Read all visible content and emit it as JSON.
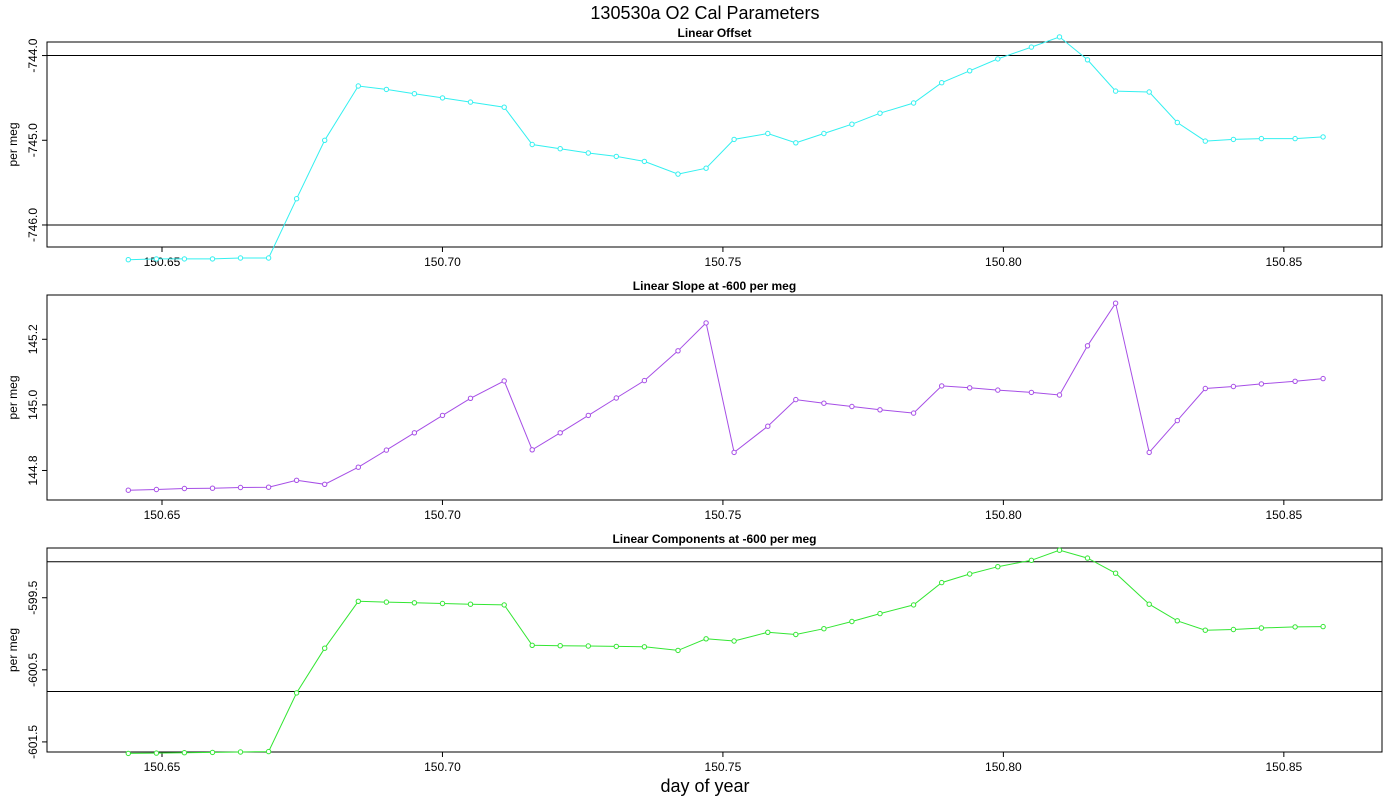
{
  "title": "130530a   O2 Cal Parameters",
  "xlabel": "day of year",
  "chart_data": [
    {
      "type": "line",
      "title": "Linear Offset",
      "ylabel": "per meg",
      "color": "#33f0f0",
      "xlim": [
        150.6295,
        150.8675
      ],
      "ylim": [
        -746.26,
        -743.84
      ],
      "xticks": [
        "150.65",
        "150.70",
        "150.75",
        "150.80",
        "150.85"
      ],
      "yticks": [
        "-744.0",
        "-745.0",
        "-746.0"
      ],
      "ref_lines": [
        -744.0,
        -746.0
      ],
      "x": [
        150.644,
        150.649,
        150.654,
        150.659,
        150.664,
        150.669,
        150.674,
        150.679,
        150.685,
        150.69,
        150.695,
        150.7,
        150.705,
        150.711,
        150.716,
        150.721,
        150.726,
        150.731,
        150.736,
        150.742,
        150.747,
        150.752,
        150.758,
        150.763,
        150.768,
        150.773,
        150.778,
        150.784,
        150.789,
        150.794,
        150.799,
        150.805,
        150.81,
        150.815,
        150.82,
        150.826,
        150.831,
        150.836,
        150.841,
        150.846,
        150.852,
        150.857
      ],
      "y": [
        -746.41,
        -746.4,
        -746.4,
        -746.4,
        -746.39,
        -746.39,
        -745.69,
        -745.0,
        -744.36,
        -744.4,
        -744.45,
        -744.5,
        -744.55,
        -744.61,
        -745.05,
        -745.1,
        -745.15,
        -745.19,
        -745.25,
        -745.4,
        -745.33,
        -744.99,
        -744.92,
        -745.03,
        -744.92,
        -744.81,
        -744.68,
        -744.56,
        -744.32,
        -744.18,
        -744.04,
        -743.9,
        -743.78,
        -744.05,
        -744.42,
        -744.43,
        -744.79,
        -745.01,
        -744.99,
        -744.98,
        -744.98,
        -744.96
      ]
    },
    {
      "type": "line",
      "title": "Linear Slope at -600 per meg",
      "ylabel": "per meg",
      "color": "#a64ee6",
      "xlim": [
        150.6295,
        150.8675
      ],
      "ylim": [
        144.71,
        145.335
      ],
      "xticks": [
        "150.65",
        "150.70",
        "150.75",
        "150.80",
        "150.85"
      ],
      "yticks": [
        "144.8",
        "145.0",
        "145.2"
      ],
      "ref_lines": [],
      "x": [
        150.644,
        150.649,
        150.654,
        150.659,
        150.664,
        150.669,
        150.674,
        150.679,
        150.685,
        150.69,
        150.695,
        150.7,
        150.705,
        150.711,
        150.716,
        150.721,
        150.726,
        150.731,
        150.736,
        150.742,
        150.747,
        150.752,
        150.758,
        150.763,
        150.768,
        150.773,
        150.778,
        150.784,
        150.789,
        150.794,
        150.799,
        150.805,
        150.81,
        150.815,
        150.82,
        150.826,
        150.831,
        150.836,
        150.841,
        150.846,
        150.852,
        150.857
      ],
      "y": [
        144.74,
        144.742,
        144.745,
        144.746,
        144.748,
        144.749,
        144.77,
        144.758,
        144.81,
        144.862,
        144.915,
        144.968,
        145.02,
        145.073,
        144.863,
        144.915,
        144.968,
        145.021,
        145.074,
        145.165,
        145.25,
        144.855,
        144.935,
        145.016,
        145.005,
        144.995,
        144.985,
        144.975,
        145.058,
        145.052,
        145.045,
        145.038,
        145.03,
        145.18,
        145.31,
        144.855,
        144.952,
        145.05,
        145.056,
        145.064,
        145.072,
        145.08
      ]
    },
    {
      "type": "line",
      "title": "Linear Components at -600 per meg",
      "ylabel": "per meg",
      "color": "#33e633",
      "xlim": [
        150.6295,
        150.8675
      ],
      "ylim": [
        -601.64,
        -598.81
      ],
      "xticks": [
        "150.65",
        "150.70",
        "150.75",
        "150.80",
        "150.85"
      ],
      "yticks": [
        "-599.5",
        "-600.5",
        "-601.5"
      ],
      "ref_lines": [
        -599.0,
        -600.8
      ],
      "x": [
        150.644,
        150.649,
        150.654,
        150.659,
        150.664,
        150.669,
        150.674,
        150.679,
        150.685,
        150.69,
        150.695,
        150.7,
        150.705,
        150.711,
        150.716,
        150.721,
        150.726,
        150.731,
        150.736,
        150.742,
        150.747,
        150.752,
        150.758,
        150.763,
        150.768,
        150.773,
        150.778,
        150.784,
        150.789,
        150.794,
        150.799,
        150.805,
        150.81,
        150.815,
        150.82,
        150.826,
        150.831,
        150.836,
        150.841,
        150.846,
        150.852,
        150.857
      ],
      "y": [
        -601.66,
        -601.655,
        -601.65,
        -601.645,
        -601.64,
        -601.635,
        -600.82,
        -600.2,
        -599.55,
        -599.56,
        -599.57,
        -599.58,
        -599.59,
        -599.6,
        -600.16,
        -600.165,
        -600.17,
        -600.175,
        -600.18,
        -600.23,
        -600.07,
        -600.1,
        -599.98,
        -600.01,
        -599.93,
        -599.83,
        -599.72,
        -599.6,
        -599.29,
        -599.17,
        -599.07,
        -598.98,
        -598.84,
        -598.95,
        -599.16,
        -599.59,
        -599.82,
        -599.95,
        -599.94,
        -599.92,
        -599.905,
        -599.9
      ]
    }
  ]
}
